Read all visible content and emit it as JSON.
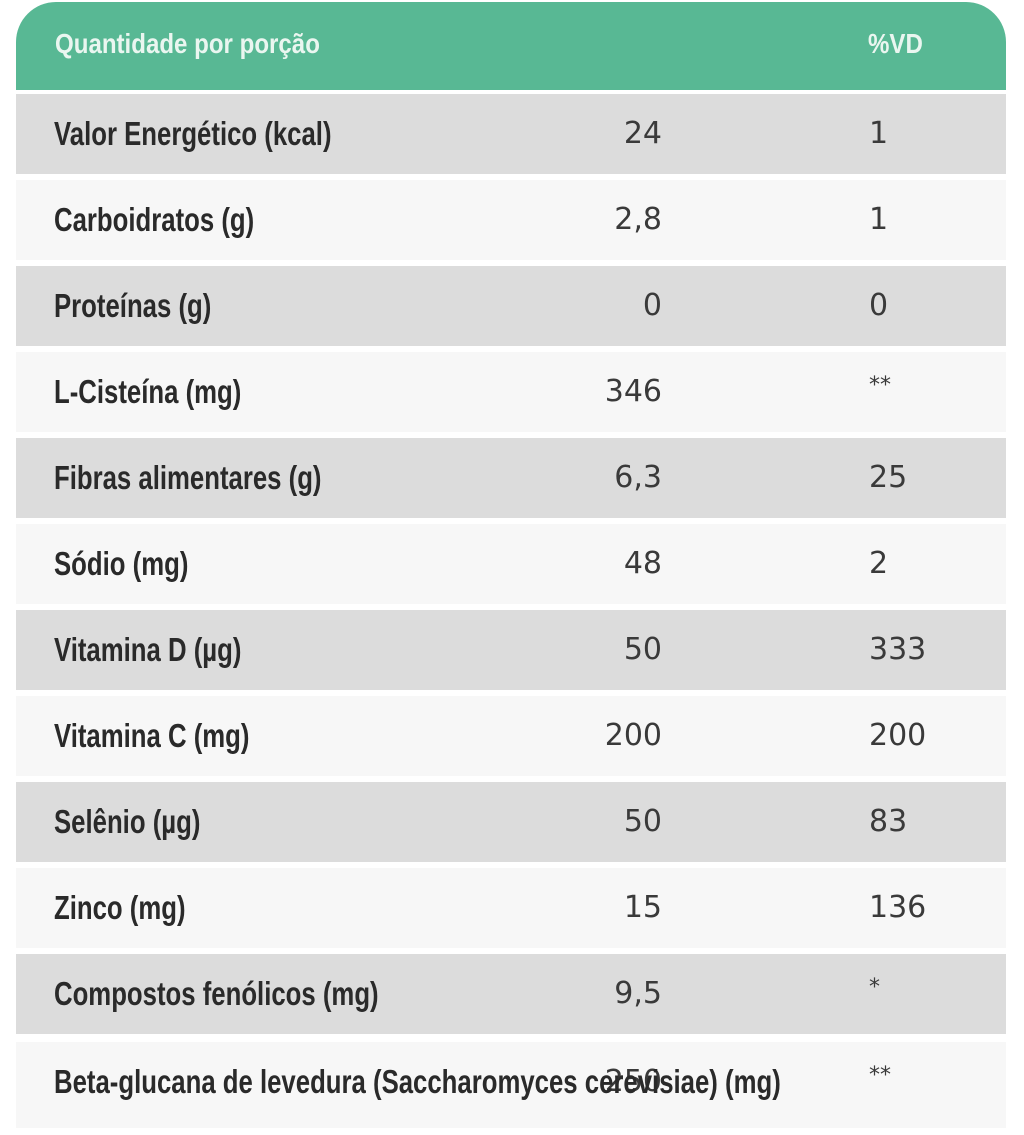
{
  "header": {
    "label": "Quantidade por porção",
    "vd": "%VD",
    "color": "#58b894"
  },
  "rows": [
    {
      "name": "Valor Energético (kcal)",
      "qty": "24",
      "vd": "1"
    },
    {
      "name": "Carboidratos (g)",
      "qty": "2,8",
      "vd": "1"
    },
    {
      "name": "Proteínas (g)",
      "qty": "0",
      "vd": "0"
    },
    {
      "name": "L-Cisteína (mg)",
      "qty": "346",
      "vd": "**"
    },
    {
      "name": "Fibras alimentares (g)",
      "qty": "6,3",
      "vd": "25"
    },
    {
      "name": "Sódio (mg)",
      "qty": "48",
      "vd": "2"
    },
    {
      "name": "Vitamina D (µg)",
      "qty": "50",
      "vd": "333"
    },
    {
      "name": "Vitamina C (mg)",
      "qty": "200",
      "vd": "200"
    },
    {
      "name": "Selênio (µg)",
      "qty": "50",
      "vd": "83"
    },
    {
      "name": "Zinco (mg)",
      "qty": "15",
      "vd": "136"
    },
    {
      "name": "Compostos fenólicos (mg)",
      "qty": "9,5",
      "vd": "*"
    },
    {
      "name": "Beta-glucana de levedura (Saccharomyces cerevisiae) (mg)",
      "qty": "250",
      "vd": "**"
    }
  ]
}
